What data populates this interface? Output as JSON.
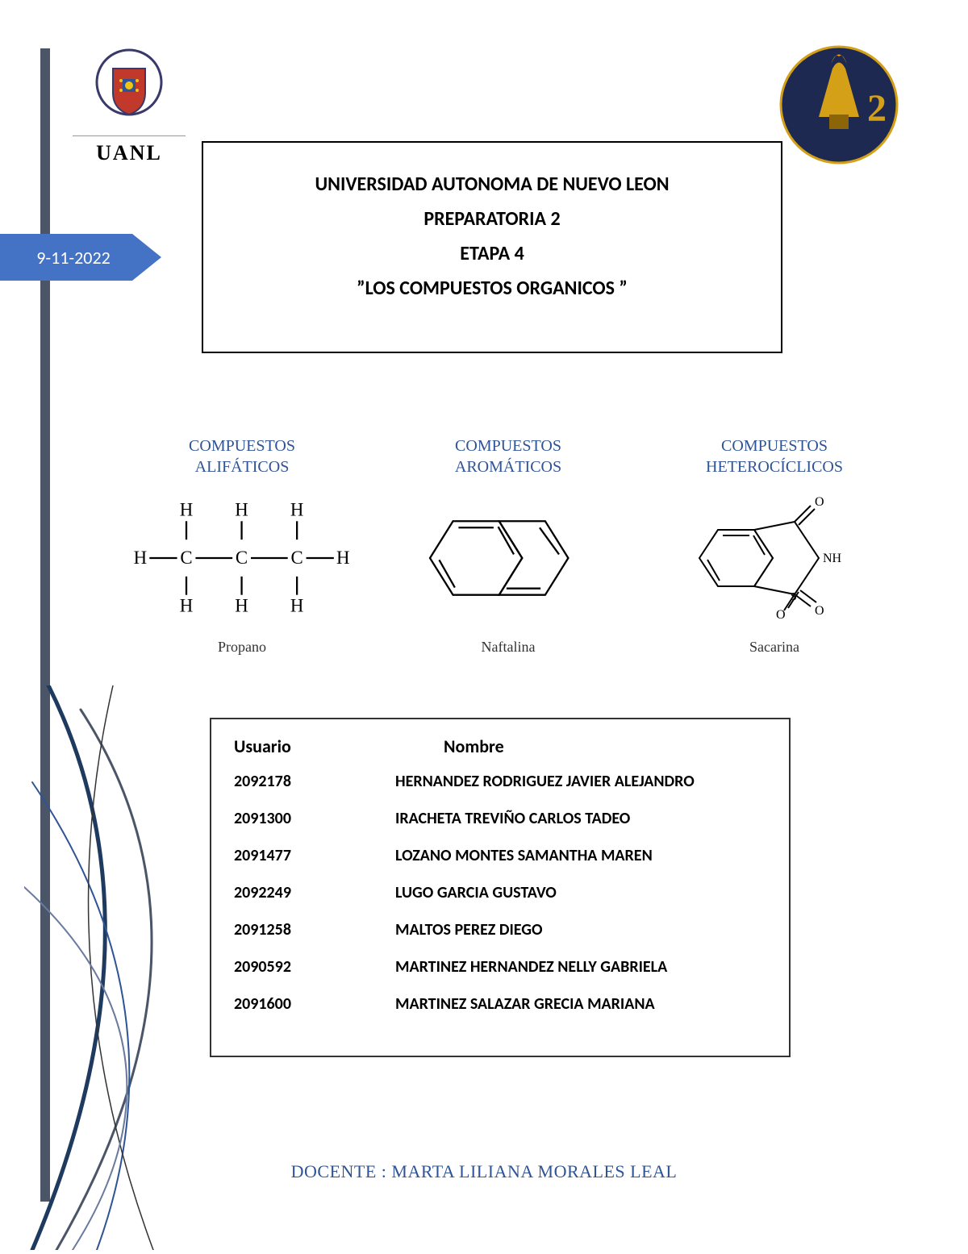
{
  "colors": {
    "darkBar": "#4a5568",
    "dateArrow": "#4472c4",
    "headingBlue": "#2f5496",
    "navyCircle": "#1d2951",
    "torchGold": "#d4a017",
    "shieldRing": "#3a3a6a"
  },
  "uanl": {
    "label": "UANL"
  },
  "header": {
    "l1": "UNIVERSIDAD AUTONOMA  DE NUEVO LEON",
    "l2": "PREPARATORIA 2",
    "l3": "ETAPA 4",
    "l4": "”LOS COMPUESTOS ORGANICOS ”"
  },
  "date": "9-11-2022",
  "compounds": [
    {
      "title1": "COMPUESTOS",
      "title2": "ALIFÁTICOS",
      "name": "Propano"
    },
    {
      "title1": "COMPUESTOS",
      "title2": "AROMÁTICOS",
      "name": "Naftalina"
    },
    {
      "title1": "COMPUESTOS",
      "title2": "HETEROCÍCLICOS",
      "name": "Sacarina"
    }
  ],
  "studentsTable": {
    "headers": {
      "user": "Usuario",
      "name": "Nombre"
    },
    "rows": [
      {
        "user": "2092178",
        "name": "HERNANDEZ RODRIGUEZ JAVIER ALEJANDRO"
      },
      {
        "user": "2091300",
        "name": "IRACHETA TREVIÑO CARLOS TADEO"
      },
      {
        "user": "2091477",
        "name": "LOZANO MONTES SAMANTHA MAREN"
      },
      {
        "user": "2092249",
        "name": "LUGO GARCIA GUSTAVO"
      },
      {
        "user": "2091258",
        "name": "MALTOS PEREZ DIEGO"
      },
      {
        "user": "2090592",
        "name": "MARTINEZ HERNANDEZ NELLY GABRIELA"
      },
      {
        "user": "2091600",
        "name": "MARTINEZ SALAZAR GRECIA MARIANA"
      }
    ]
  },
  "teacher": "DOCENTE : MARTA LILIANA MORALES LEAL"
}
